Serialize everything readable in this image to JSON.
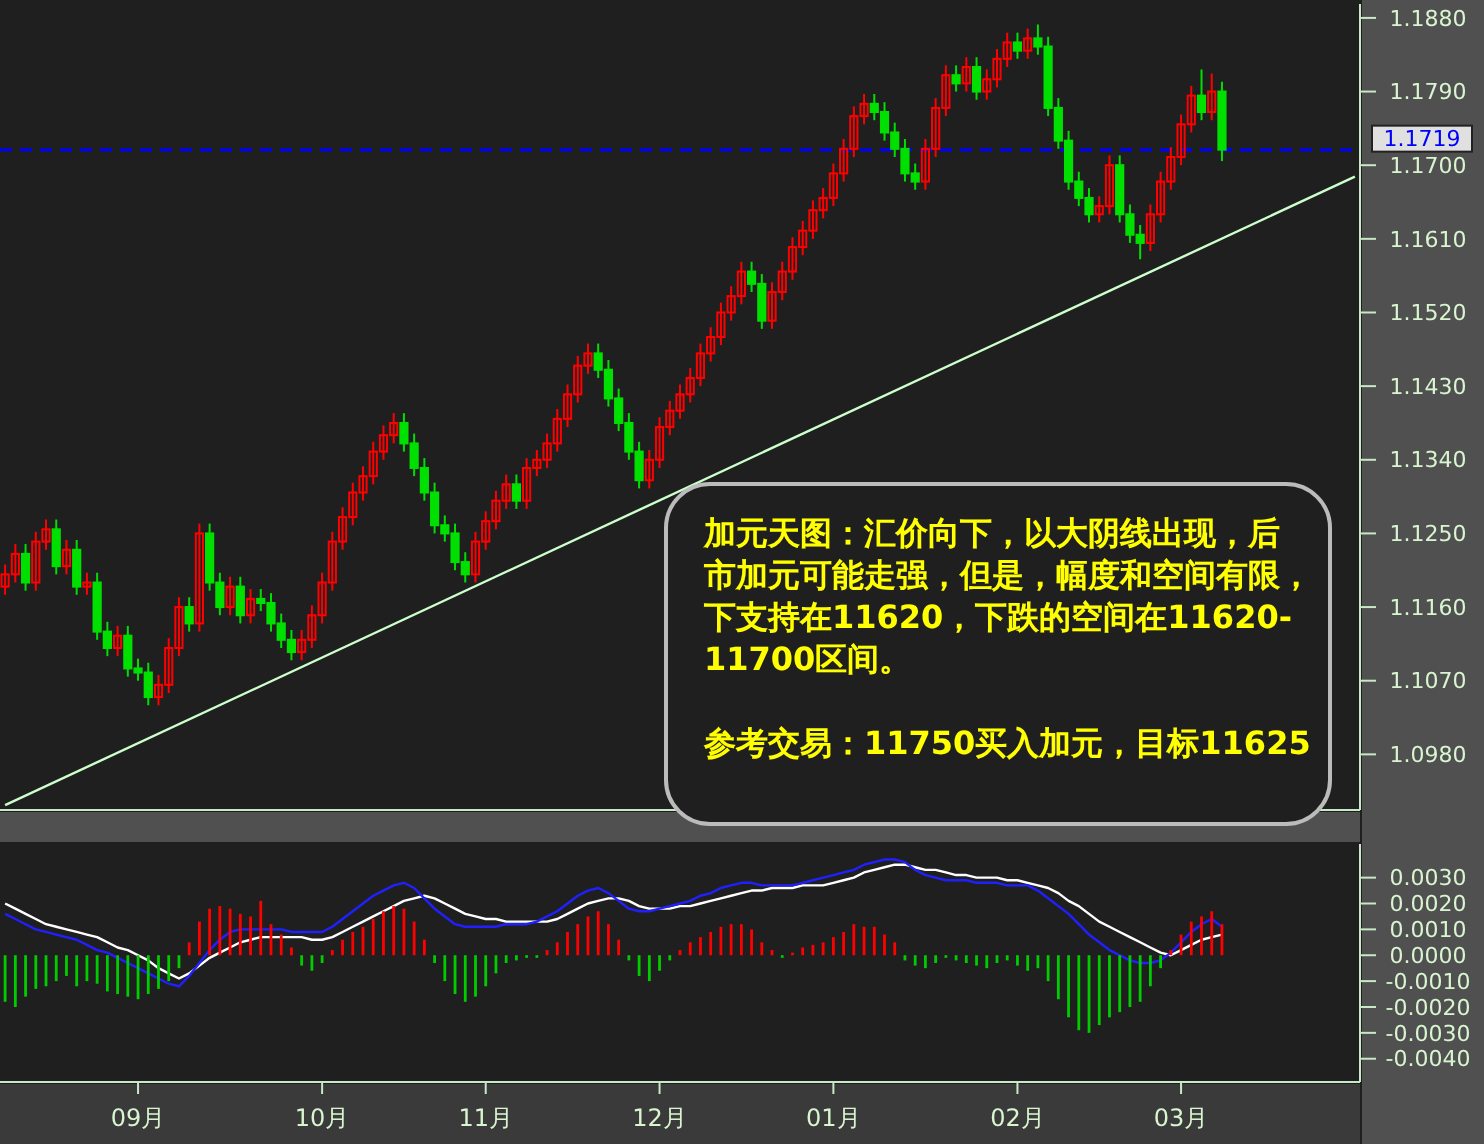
{
  "chart_data": [
    {
      "type": "candlestick",
      "categories": [
        null,
        null,
        null,
        null,
        null,
        null,
        null,
        null,
        null,
        null,
        null,
        null,
        null,
        null,
        null,
        null,
        null,
        null,
        null,
        null,
        null,
        null,
        null,
        null,
        null,
        null,
        null,
        null,
        null,
        null,
        null,
        null,
        null,
        null,
        null,
        null,
        null,
        null,
        null,
        null,
        null,
        null,
        null,
        null,
        null,
        null,
        null,
        null,
        null,
        null,
        null,
        null,
        null,
        null,
        null,
        null,
        null,
        null,
        null,
        null,
        null,
        null,
        null,
        null,
        null,
        null,
        null,
        null,
        null,
        null,
        null,
        null,
        null,
        null,
        null,
        null,
        null,
        null,
        null,
        null,
        null,
        null,
        null,
        null,
        null,
        null,
        null,
        null,
        null,
        null,
        null,
        null,
        null,
        null,
        null,
        null,
        null,
        null,
        null,
        null,
        null,
        null,
        null,
        null,
        null,
        null,
        null,
        null,
        null,
        null,
        null,
        null,
        null,
        null,
        null,
        null,
        null,
        null,
        null,
        null,
        null,
        null,
        null,
        null,
        null,
        null,
        null,
        null,
        null,
        null,
        null,
        null,
        null
      ],
      "ohlc": [
        [
          1.1185,
          1.1212,
          1.1175,
          1.12
        ],
        [
          1.12,
          1.1237,
          1.119,
          1.1225
        ],
        [
          1.1225,
          1.1237,
          1.118,
          1.119
        ],
        [
          1.119,
          1.1252,
          1.118,
          1.124
        ],
        [
          1.124,
          1.1267,
          1.123,
          1.1255
        ],
        [
          1.1255,
          1.1267,
          1.12,
          1.121
        ],
        [
          1.121,
          1.1242,
          1.12,
          1.123
        ],
        [
          1.123,
          1.1242,
          1.1175,
          1.1185
        ],
        [
          1.1185,
          1.1202,
          1.1175,
          1.119
        ],
        [
          1.119,
          1.1202,
          1.112,
          1.113
        ],
        [
          1.113,
          1.1142,
          1.11,
          1.111
        ],
        [
          1.111,
          1.1137,
          1.11,
          1.1125
        ],
        [
          1.1125,
          1.1137,
          1.1075,
          1.1085
        ],
        [
          1.1085,
          1.1097,
          1.107,
          1.108
        ],
        [
          1.108,
          1.1092,
          1.104,
          1.105
        ],
        [
          1.105,
          1.1077,
          1.104,
          1.1065
        ],
        [
          1.1065,
          1.1122,
          1.1055,
          1.111
        ],
        [
          1.111,
          1.1172,
          1.11,
          1.116
        ],
        [
          1.116,
          1.1172,
          1.113,
          1.114
        ],
        [
          1.114,
          1.1262,
          1.113,
          1.125
        ],
        [
          1.125,
          1.1262,
          1.118,
          1.119
        ],
        [
          1.119,
          1.1202,
          1.115,
          1.116
        ],
        [
          1.116,
          1.1197,
          1.115,
          1.1185
        ],
        [
          1.1185,
          1.1197,
          1.114,
          1.115
        ],
        [
          1.115,
          1.1182,
          1.114,
          1.117
        ],
        [
          1.117,
          1.1182,
          1.1155,
          1.1165
        ],
        [
          1.1165,
          1.1177,
          1.113,
          1.114
        ],
        [
          1.114,
          1.1152,
          1.111,
          1.112
        ],
        [
          1.112,
          1.1132,
          1.1095,
          1.1105
        ],
        [
          1.1105,
          1.1132,
          1.1095,
          1.112
        ],
        [
          1.112,
          1.1162,
          1.111,
          1.115
        ],
        [
          1.115,
          1.1202,
          1.114,
          1.119
        ],
        [
          1.119,
          1.1252,
          1.118,
          1.124
        ],
        [
          1.124,
          1.1282,
          1.123,
          1.127
        ],
        [
          1.127,
          1.1312,
          1.126,
          1.13
        ],
        [
          1.13,
          1.1332,
          1.129,
          1.132
        ],
        [
          1.132,
          1.1362,
          1.131,
          1.135
        ],
        [
          1.135,
          1.1382,
          1.134,
          1.137
        ],
        [
          1.137,
          1.1397,
          1.136,
          1.1385
        ],
        [
          1.1385,
          1.1397,
          1.135,
          1.136
        ],
        [
          1.136,
          1.1372,
          1.132,
          1.133
        ],
        [
          1.133,
          1.1342,
          1.129,
          1.13
        ],
        [
          1.13,
          1.1312,
          1.125,
          1.126
        ],
        [
          1.126,
          1.1272,
          1.124,
          1.125
        ],
        [
          1.125,
          1.1262,
          1.1205,
          1.1215
        ],
        [
          1.1215,
          1.1227,
          1.119,
          1.12
        ],
        [
          1.12,
          1.1252,
          1.119,
          1.124
        ],
        [
          1.124,
          1.1277,
          1.123,
          1.1265
        ],
        [
          1.1265,
          1.1302,
          1.1255,
          1.129
        ],
        [
          1.129,
          1.1322,
          1.128,
          1.131
        ],
        [
          1.131,
          1.1322,
          1.128,
          1.129
        ],
        [
          1.129,
          1.1342,
          1.128,
          1.133
        ],
        [
          1.133,
          1.1352,
          1.132,
          1.134
        ],
        [
          1.134,
          1.1372,
          1.133,
          1.136
        ],
        [
          1.136,
          1.1402,
          1.135,
          1.139
        ],
        [
          1.139,
          1.1432,
          1.138,
          1.142
        ],
        [
          1.142,
          1.1467,
          1.141,
          1.1455
        ],
        [
          1.1455,
          1.1482,
          1.1445,
          1.147
        ],
        [
          1.147,
          1.1482,
          1.144,
          1.145
        ],
        [
          1.145,
          1.1462,
          1.1405,
          1.1415
        ],
        [
          1.1415,
          1.1427,
          1.1375,
          1.1385
        ],
        [
          1.1385,
          1.1397,
          1.134,
          1.135
        ],
        [
          1.135,
          1.1362,
          1.1305,
          1.1315
        ],
        [
          1.1315,
          1.1352,
          1.1305,
          1.134
        ],
        [
          1.134,
          1.1392,
          1.133,
          1.138
        ],
        [
          1.138,
          1.1412,
          1.137,
          1.14
        ],
        [
          1.14,
          1.1432,
          1.139,
          1.142
        ],
        [
          1.142,
          1.1452,
          1.141,
          1.144
        ],
        [
          1.144,
          1.1482,
          1.143,
          1.147
        ],
        [
          1.147,
          1.1502,
          1.146,
          1.149
        ],
        [
          1.149,
          1.1532,
          1.148,
          1.152
        ],
        [
          1.152,
          1.1552,
          1.151,
          1.154
        ],
        [
          1.154,
          1.1582,
          1.153,
          1.157
        ],
        [
          1.157,
          1.1582,
          1.1545,
          1.1555
        ],
        [
          1.1555,
          1.1567,
          1.15,
          1.151
        ],
        [
          1.151,
          1.1557,
          1.15,
          1.1545
        ],
        [
          1.1545,
          1.1582,
          1.1535,
          1.157
        ],
        [
          1.157,
          1.1612,
          1.156,
          1.16
        ],
        [
          1.16,
          1.1632,
          1.159,
          1.162
        ],
        [
          1.162,
          1.1657,
          1.161,
          1.1645
        ],
        [
          1.1645,
          1.1672,
          1.1635,
          1.166
        ],
        [
          1.166,
          1.1702,
          1.165,
          1.169
        ],
        [
          1.169,
          1.1732,
          1.168,
          1.172
        ],
        [
          1.172,
          1.1772,
          1.171,
          1.176
        ],
        [
          1.176,
          1.1787,
          1.175,
          1.1775
        ],
        [
          1.1775,
          1.1787,
          1.1755,
          1.1765
        ],
        [
          1.1765,
          1.1777,
          1.173,
          1.174
        ],
        [
          1.174,
          1.1752,
          1.171,
          1.172
        ],
        [
          1.172,
          1.1732,
          1.168,
          1.169
        ],
        [
          1.169,
          1.1702,
          1.167,
          1.168
        ],
        [
          1.168,
          1.1732,
          1.167,
          1.172
        ],
        [
          1.172,
          1.1782,
          1.171,
          1.177
        ],
        [
          1.177,
          1.1822,
          1.176,
          1.181
        ],
        [
          1.181,
          1.1822,
          1.179,
          1.18
        ],
        [
          1.18,
          1.1832,
          1.179,
          1.182
        ],
        [
          1.182,
          1.1832,
          1.178,
          1.179
        ],
        [
          1.179,
          1.1817,
          1.178,
          1.1805
        ],
        [
          1.1805,
          1.1842,
          1.1795,
          1.183
        ],
        [
          1.183,
          1.1862,
          1.182,
          1.185
        ],
        [
          1.185,
          1.1862,
          1.183,
          1.184
        ],
        [
          1.184,
          1.1867,
          1.183,
          1.1855
        ],
        [
          1.1855,
          1.1872,
          1.1835,
          1.1845
        ],
        [
          1.1845,
          1.1857,
          1.176,
          1.177
        ],
        [
          1.177,
          1.1782,
          1.172,
          1.173
        ],
        [
          1.173,
          1.1742,
          1.167,
          1.168
        ],
        [
          1.168,
          1.1692,
          1.165,
          1.166
        ],
        [
          1.166,
          1.1672,
          1.163,
          1.164
        ],
        [
          1.164,
          1.1662,
          1.163,
          1.165
        ],
        [
          1.165,
          1.1712,
          1.164,
          1.17
        ],
        [
          1.17,
          1.1712,
          1.163,
          1.164
        ],
        [
          1.164,
          1.1652,
          1.1605,
          1.1615
        ],
        [
          1.1615,
          1.1627,
          1.1585,
          1.1605
        ],
        [
          1.1605,
          1.1652,
          1.1595,
          1.164
        ],
        [
          1.164,
          1.1692,
          1.163,
          1.168
        ],
        [
          1.168,
          1.1722,
          1.167,
          1.171
        ],
        [
          1.171,
          1.1762,
          1.17,
          1.175
        ],
        [
          1.175,
          1.1797,
          1.174,
          1.1785
        ],
        [
          1.1785,
          1.1817,
          1.1755,
          1.1765
        ],
        [
          1.1765,
          1.1812,
          1.1755,
          1.179
        ],
        [
          1.179,
          1.1802,
          1.1705,
          1.1719
        ],
        null,
        null,
        null,
        null,
        null,
        null,
        null,
        null,
        null,
        null,
        null,
        null,
        null
      ],
      "series": [
        {
          "type": "line",
          "color": "#ccffcc",
          "values": [
            1.0918,
            null,
            null,
            null,
            null,
            null,
            null,
            null,
            null,
            null,
            null,
            null,
            null,
            null,
            null,
            null,
            null,
            null,
            null,
            null,
            null,
            null,
            null,
            null,
            null,
            null,
            null,
            null,
            null,
            null,
            null,
            null,
            null,
            null,
            null,
            null,
            null,
            null,
            null,
            null,
            null,
            null,
            null,
            null,
            null,
            null,
            null,
            null,
            null,
            null,
            null,
            null,
            null,
            null,
            null,
            null,
            null,
            null,
            null,
            null,
            null,
            null,
            null,
            null,
            null,
            null,
            null,
            null,
            null,
            null,
            null,
            null,
            null,
            null,
            null,
            null,
            null,
            null,
            null,
            null,
            null,
            null,
            null,
            null,
            null,
            null,
            null,
            null,
            null,
            null,
            null,
            null,
            null,
            null,
            null,
            null,
            null,
            null,
            null,
            null,
            null,
            null,
            null,
            null,
            null,
            null,
            null,
            null,
            null,
            null,
            null,
            null,
            null,
            null,
            null,
            null,
            null,
            null,
            null,
            null,
            null,
            null,
            null,
            null,
            null,
            null,
            null,
            null,
            null,
            null,
            null,
            null,
            1.1686
          ]
        }
      ],
      "ylim": [
        1.0912,
        1.1897
      ],
      "yticks": [
        {
          "value": 1.098,
          "label": "1.0980"
        },
        {
          "value": 1.107,
          "label": "1.1070"
        },
        {
          "value": 1.116,
          "label": "1.1160"
        },
        {
          "value": 1.125,
          "label": "1.1250"
        },
        {
          "value": 1.134,
          "label": "1.1340"
        },
        {
          "value": 1.143,
          "label": "1.1430"
        },
        {
          "value": 1.152,
          "label": "1.1520"
        },
        {
          "value": 1.161,
          "label": "1.1610"
        },
        {
          "value": 1.17,
          "label": "1.1700"
        },
        {
          "value": 1.179,
          "label": "1.1790"
        },
        {
          "value": 1.188,
          "label": "1.1880"
        }
      ],
      "ref_lines": [
        {
          "axis": "y",
          "value": 1.1719,
          "label": "1.1719",
          "color": "#0000ff",
          "line_style": "dashed"
        }
      ],
      "annotations": [
        "加元天图：汇价向下，以大阴线出现，后市加元可能走强，但是，幅度和空间有限，下支持在11620，下跌的空间在11620-11700区间。",
        "参考交易：11750买入加元，目标11625"
      ],
      "tick_labels": "y"
    },
    {
      "type": "bar",
      "categories": [
        null,
        null,
        null,
        null,
        null,
        null,
        null,
        null,
        null,
        null,
        null,
        null,
        null,
        "09月",
        null,
        null,
        null,
        null,
        null,
        null,
        null,
        null,
        null,
        null,
        null,
        null,
        null,
        null,
        null,
        null,
        null,
        "10月",
        null,
        null,
        null,
        null,
        null,
        null,
        null,
        null,
        null,
        null,
        null,
        null,
        null,
        null,
        null,
        "11月",
        null,
        null,
        null,
        null,
        null,
        null,
        null,
        null,
        null,
        null,
        null,
        null,
        null,
        null,
        null,
        null,
        "12月",
        null,
        null,
        null,
        null,
        null,
        null,
        null,
        null,
        null,
        null,
        null,
        null,
        null,
        null,
        null,
        null,
        "01月",
        null,
        null,
        null,
        null,
        null,
        null,
        null,
        null,
        null,
        null,
        null,
        null,
        null,
        null,
        null,
        null,
        null,
        "02月",
        null,
        null,
        null,
        null,
        null,
        null,
        null,
        null,
        null,
        null,
        null,
        null,
        null,
        null,
        null,
        "03月",
        null,
        null,
        null,
        null,
        null,
        null,
        null,
        null,
        null,
        null,
        null,
        null,
        null,
        null,
        null,
        null,
        null
      ],
      "series": [
        {
          "type": "bar",
          "values": [
            -0.0018,
            -0.002,
            -0.0016,
            -0.0013,
            -0.0012,
            -0.001,
            -0.0008,
            -0.0012,
            -0.001,
            -0.0011,
            -0.0014,
            -0.0015,
            -0.0016,
            -0.0017,
            -0.0015,
            -0.0013,
            -0.001,
            -0.0005,
            0.0005,
            0.0013,
            0.0018,
            0.0019,
            0.0018,
            0.0016,
            0.0015,
            0.0021,
            0.0012,
            0.0008,
            0.0003,
            -0.0004,
            -0.0006,
            -0.0003,
            0.0002,
            0.0006,
            0.0009,
            0.0011,
            0.0014,
            0.0017,
            0.0019,
            0.0018,
            0.0013,
            0.0006,
            -0.0003,
            -0.001,
            -0.0015,
            -0.0018,
            -0.0016,
            -0.0012,
            -0.0007,
            -0.0003,
            -0.0002,
            -0.0001,
            -0.0001,
            0.0002,
            0.0005,
            0.0009,
            0.0012,
            0.0015,
            0.0017,
            0.0012,
            0.0006,
            -0.0002,
            -0.0008,
            -0.001,
            -0.0006,
            -0.0002,
            0.0002,
            0.0005,
            0.0007,
            0.0009,
            0.0011,
            0.0012,
            0.0012,
            0.001,
            0.0005,
            0.0002,
            -0.0001,
            0.0001,
            0.0003,
            0.0004,
            0.0005,
            0.0007,
            0.0009,
            0.0012,
            0.0011,
            0.0011,
            0.0008,
            0.0005,
            -0.0002,
            -0.0004,
            -0.0005,
            -0.0003,
            -0.0001,
            -0.0002,
            -0.0003,
            -0.0004,
            -0.0005,
            -0.0003,
            -0.0002,
            -0.0004,
            -0.0006,
            -0.0005,
            -0.001,
            -0.0017,
            -0.0024,
            -0.0029,
            -0.003,
            -0.0027,
            -0.0024,
            -0.0022,
            -0.002,
            -0.0018,
            -0.0012,
            -0.0005,
            0.0002,
            0.0008,
            0.0013,
            0.0015,
            0.0017,
            0.0012,
            null,
            null,
            null,
            null,
            null,
            null,
            null,
            null,
            null,
            null,
            null,
            null,
            null
          ],
          "colors": [
            "#00cc00",
            "#00cc00",
            "#00cc00",
            "#00cc00",
            "#00cc00",
            "#00cc00",
            "#00cc00",
            "#00cc00",
            "#00cc00",
            "#00cc00",
            "#00cc00",
            "#00cc00",
            "#00cc00",
            "#00cc00",
            "#00cc00",
            "#00cc00",
            "#00cc00",
            "#00cc00",
            "#ff0000",
            "#ff0000",
            "#ff0000",
            "#ff0000",
            "#ff0000",
            "#ff0000",
            "#ff0000",
            "#ff0000",
            "#ff0000",
            "#ff0000",
            "#ff0000",
            "#00cc00",
            "#00cc00",
            "#00cc00",
            "#ff0000",
            "#ff0000",
            "#ff0000",
            "#ff0000",
            "#ff0000",
            "#ff0000",
            "#ff0000",
            "#ff0000",
            "#ff0000",
            "#ff0000",
            "#00cc00",
            "#00cc00",
            "#00cc00",
            "#00cc00",
            "#00cc00",
            "#00cc00",
            "#00cc00",
            "#00cc00",
            "#00cc00",
            "#00cc00",
            "#00cc00",
            "#ff0000",
            "#ff0000",
            "#ff0000",
            "#ff0000",
            "#ff0000",
            "#ff0000",
            "#ff0000",
            "#ff0000",
            "#00cc00",
            "#00cc00",
            "#00cc00",
            "#00cc00",
            "#00cc00",
            "#ff0000",
            "#ff0000",
            "#ff0000",
            "#ff0000",
            "#ff0000",
            "#ff0000",
            "#ff0000",
            "#ff0000",
            "#ff0000",
            "#ff0000",
            "#00cc00",
            "#ff0000",
            "#ff0000",
            "#ff0000",
            "#ff0000",
            "#ff0000",
            "#ff0000",
            "#ff0000",
            "#ff0000",
            "#ff0000",
            "#ff0000",
            "#ff0000",
            "#00cc00",
            "#00cc00",
            "#00cc00",
            "#00cc00",
            "#00cc00",
            "#00cc00",
            "#00cc00",
            "#00cc00",
            "#00cc00",
            "#00cc00",
            "#00cc00",
            "#00cc00",
            "#00cc00",
            "#00cc00",
            "#00cc00",
            "#00cc00",
            "#00cc00",
            "#00cc00",
            "#00cc00",
            "#00cc00",
            "#00cc00",
            "#00cc00",
            "#00cc00",
            "#00cc00",
            "#00cc00",
            "#00cc00",
            "#ff0000",
            "#ff0000",
            "#ff0000",
            "#ff0000",
            "#ff0000",
            "#ff0000",
            null,
            null,
            null,
            null,
            null,
            null,
            null,
            null,
            null,
            null,
            null,
            null,
            null
          ]
        },
        {
          "type": "line",
          "color": "#ffffff",
          "values": [
            0.002,
            0.0018,
            0.0016,
            0.0014,
            0.0012,
            0.0011,
            0.001,
            0.0009,
            0.0008,
            0.0007,
            0.0005,
            0.0003,
            0.0002,
            0.0,
            -0.0002,
            -0.0005,
            -0.0007,
            -0.0009,
            -0.0007,
            -0.0004,
            -0.0001,
            0.0001,
            0.0003,
            0.0005,
            0.0006,
            0.0007,
            0.0007,
            0.0007,
            0.0007,
            0.0007,
            0.0006,
            0.0006,
            0.0007,
            0.0009,
            0.0011,
            0.0013,
            0.0015,
            0.0017,
            0.0019,
            0.0021,
            0.0022,
            0.0023,
            0.0022,
            0.002,
            0.0018,
            0.0016,
            0.0015,
            0.0014,
            0.0014,
            0.0013,
            0.0013,
            0.0013,
            0.0013,
            0.0013,
            0.0014,
            0.0016,
            0.0018,
            0.002,
            0.0021,
            0.0022,
            0.0022,
            0.0021,
            0.0019,
            0.0018,
            0.0018,
            0.0018,
            0.0019,
            0.0019,
            0.002,
            0.0021,
            0.0022,
            0.0023,
            0.0024,
            0.0025,
            0.0025,
            0.0026,
            0.0026,
            0.0026,
            0.0027,
            0.0027,
            0.0027,
            0.0028,
            0.0029,
            0.003,
            0.0032,
            0.0033,
            0.0034,
            0.0035,
            0.0035,
            0.0034,
            0.0033,
            0.0033,
            0.0032,
            0.0031,
            0.0031,
            0.003,
            0.003,
            0.003,
            0.0029,
            0.0029,
            0.0028,
            0.0027,
            0.0026,
            0.0024,
            0.0021,
            0.0019,
            0.0016,
            0.0013,
            0.0011,
            0.0009,
            0.0007,
            0.0005,
            0.0003,
            0.0001,
            0.0,
            0.0002,
            0.0004,
            0.0006,
            0.0007,
            0.0008,
            null,
            null,
            null,
            null,
            null,
            null,
            null,
            null,
            null,
            null,
            null,
            null,
            null
          ]
        },
        {
          "type": "line",
          "color": "#2020ff",
          "values": [
            0.0016,
            0.0014,
            0.0012,
            0.001,
            0.0009,
            0.0008,
            0.0007,
            0.0006,
            0.0004,
            0.0002,
            0.0001,
            -0.0001,
            -0.0003,
            -0.0005,
            -0.0007,
            -0.0009,
            -0.0011,
            -0.0012,
            -0.0008,
            -0.0003,
            0.0002,
            0.0006,
            0.0009,
            0.001,
            0.001,
            0.001,
            0.001,
            0.001,
            0.0009,
            0.0009,
            0.0009,
            0.0009,
            0.0011,
            0.0014,
            0.0017,
            0.002,
            0.0023,
            0.0025,
            0.0027,
            0.0028,
            0.0026,
            0.0022,
            0.0018,
            0.0015,
            0.0012,
            0.0011,
            0.0011,
            0.0011,
            0.0011,
            0.0012,
            0.0012,
            0.0012,
            0.0013,
            0.0015,
            0.0017,
            0.002,
            0.0023,
            0.0025,
            0.0026,
            0.0024,
            0.0021,
            0.0018,
            0.0017,
            0.0017,
            0.0018,
            0.0019,
            0.002,
            0.0021,
            0.0023,
            0.0024,
            0.0026,
            0.0027,
            0.0028,
            0.0028,
            0.0027,
            0.0027,
            0.0027,
            0.0027,
            0.0028,
            0.0029,
            0.003,
            0.0031,
            0.0032,
            0.0033,
            0.0035,
            0.0036,
            0.0037,
            0.0037,
            0.0036,
            0.0033,
            0.0031,
            0.003,
            0.0029,
            0.0029,
            0.0029,
            0.0028,
            0.0028,
            0.0028,
            0.0027,
            0.0027,
            0.0027,
            0.0025,
            0.0022,
            0.0019,
            0.0016,
            0.0012,
            0.0008,
            0.0005,
            0.0002,
            0.0,
            -0.0002,
            -0.0003,
            -0.0003,
            -0.0002,
            0.0001,
            0.0005,
            0.0009,
            0.0012,
            0.0014,
            0.0011,
            null,
            null,
            null,
            null,
            null,
            null,
            null,
            null,
            null,
            null,
            null,
            null,
            null
          ]
        }
      ],
      "ylim": [
        -0.0049,
        0.0043
      ],
      "yticks": [
        {
          "value": 0.003,
          "label": "0.0030"
        },
        {
          "value": 0.002,
          "label": "0.0020"
        },
        {
          "value": 0.001,
          "label": "0.0010"
        },
        {
          "value": 0,
          "label": "0.0000"
        },
        {
          "value": -0.001,
          "label": "-0.0010"
        },
        {
          "value": -0.002,
          "label": "-0.0020"
        },
        {
          "value": -0.003,
          "label": "-0.0030"
        },
        {
          "value": -0.004,
          "label": "-0.0040"
        }
      ]
    }
  ]
}
